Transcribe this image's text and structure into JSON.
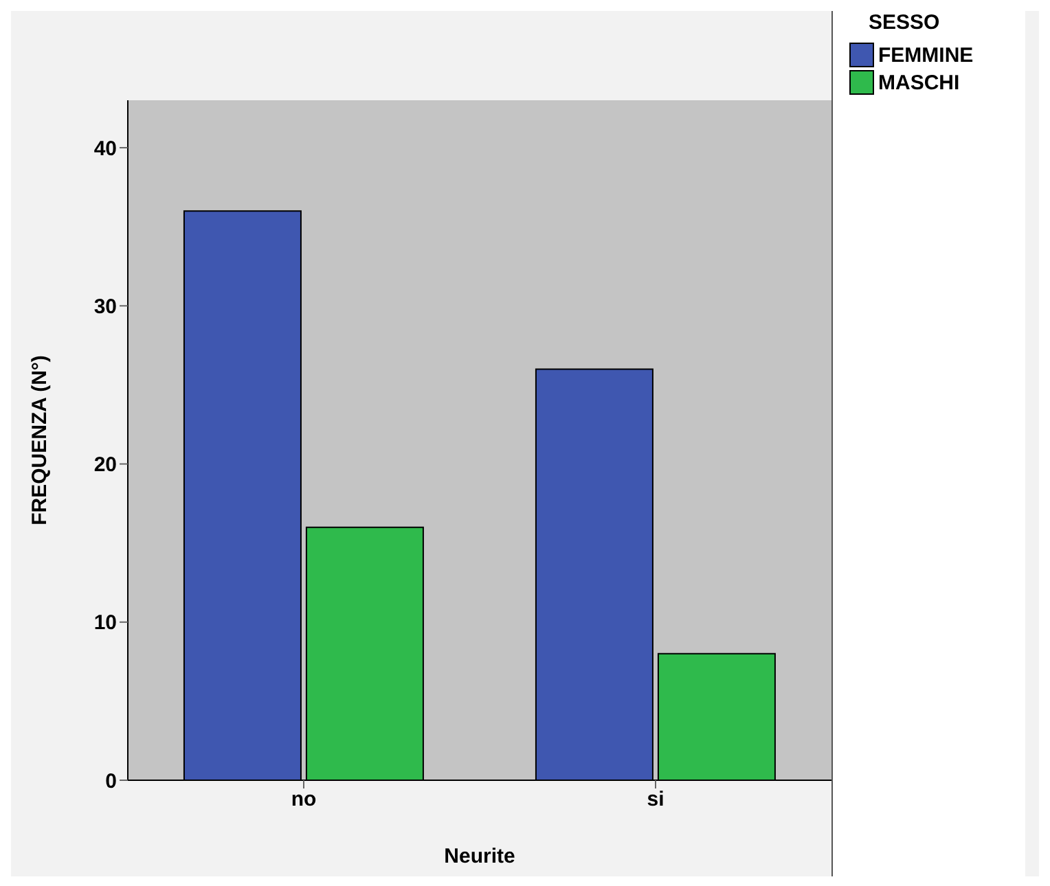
{
  "chart_data": {
    "type": "bar",
    "xlabel": "Neurite",
    "ylabel": "FREQUENZA (N°)",
    "legend_title": "SESSO",
    "categories": [
      "no",
      "si"
    ],
    "series": [
      {
        "name": "FEMMINE",
        "color": "#3f57b0",
        "values": [
          36,
          26
        ]
      },
      {
        "name": "MASCHI",
        "color": "#2fba4c",
        "values": [
          16,
          8
        ]
      }
    ],
    "ylim": [
      0,
      43
    ],
    "yticks": [
      0,
      10,
      20,
      30,
      40
    ],
    "grid": false,
    "legend": "top right"
  }
}
